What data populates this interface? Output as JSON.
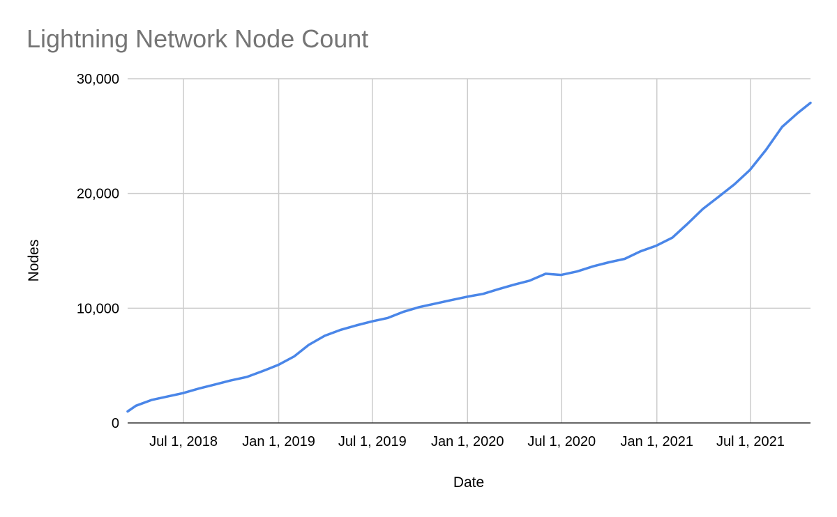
{
  "chart_data": {
    "type": "line",
    "title": "Lightning Network Node Count",
    "xlabel": "Date",
    "ylabel": "Nodes",
    "ylim": [
      0,
      30000
    ],
    "y_ticks": [
      "0",
      "10,000",
      "20,000",
      "30,000"
    ],
    "y_tick_values": [
      0,
      10000,
      20000,
      30000
    ],
    "x_range": [
      "2018-03-15",
      "2021-10-25"
    ],
    "x_ticks": [
      "Jul 1, 2018",
      "Jan 1, 2019",
      "Jul 1, 2019",
      "Jan 1, 2020",
      "Jul 1, 2020",
      "Jan 1, 2021",
      "Jul 1, 2021"
    ],
    "x_tick_dates": [
      "2018-07-01",
      "2019-01-01",
      "2019-07-01",
      "2020-01-01",
      "2020-07-01",
      "2021-01-01",
      "2021-07-01"
    ],
    "grid": true,
    "legend": "none",
    "series": [
      {
        "color": "#4a86e8",
        "x": [
          "2018-03-15",
          "2018-03-31",
          "2018-04-30",
          "2018-05-31",
          "2018-06-30",
          "2018-07-31",
          "2018-08-31",
          "2018-09-30",
          "2018-10-31",
          "2018-11-30",
          "2018-12-31",
          "2019-01-31",
          "2019-02-28",
          "2019-03-31",
          "2019-04-30",
          "2019-05-31",
          "2019-06-30",
          "2019-07-31",
          "2019-08-31",
          "2019-09-30",
          "2019-10-31",
          "2019-11-30",
          "2019-12-31",
          "2020-01-31",
          "2020-02-29",
          "2020-03-31",
          "2020-04-30",
          "2020-05-31",
          "2020-06-30",
          "2020-07-31",
          "2020-08-31",
          "2020-09-30",
          "2020-10-31",
          "2020-11-30",
          "2020-12-31",
          "2021-01-31",
          "2021-02-28",
          "2021-03-31",
          "2021-04-30",
          "2021-05-31",
          "2021-06-30",
          "2021-07-31",
          "2021-08-31",
          "2021-09-30",
          "2021-10-25"
        ],
        "values": [
          1000,
          1500,
          2000,
          2300,
          2600,
          3000,
          3350,
          3700,
          4000,
          4500,
          5050,
          5800,
          6800,
          7600,
          8100,
          8500,
          8850,
          9150,
          9700,
          10100,
          10400,
          10700,
          11000,
          11250,
          11650,
          12050,
          12400,
          13000,
          12900,
          13200,
          13650,
          14000,
          14300,
          14950,
          15450,
          16150,
          17300,
          18650,
          19700,
          20800,
          22050,
          23800,
          25800,
          27000,
          27900
        ]
      }
    ]
  }
}
